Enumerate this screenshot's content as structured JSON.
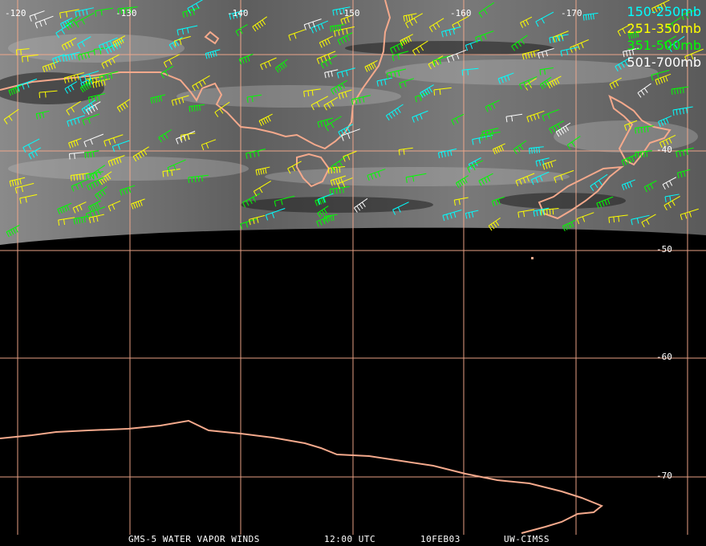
{
  "map": {
    "longitude_labels": [
      "-120",
      "-130",
      "-140",
      "-150",
      "-160",
      "-170"
    ],
    "latitude_labels": [
      "-40",
      "-50",
      "-60",
      "-70"
    ]
  },
  "legend": [
    {
      "label": "150-250mb",
      "color": "#00ffff"
    },
    {
      "label": "251-350mb",
      "color": "#ffff00"
    },
    {
      "label": "351-500mb",
      "color": "#00ff00"
    },
    {
      "label": "501-700mb",
      "color": "#ffffff"
    }
  ],
  "footer": {
    "satellite": "GMS-5 WATER VAPOR WINDS",
    "time": "12:00 UTC",
    "date": "10FEB03",
    "organization": "UW-CIMSS"
  },
  "colors": {
    "grid": "#f4a98c",
    "coastline": "#f4a98c",
    "background": "#000000",
    "imagery": "#6e6e6e"
  }
}
